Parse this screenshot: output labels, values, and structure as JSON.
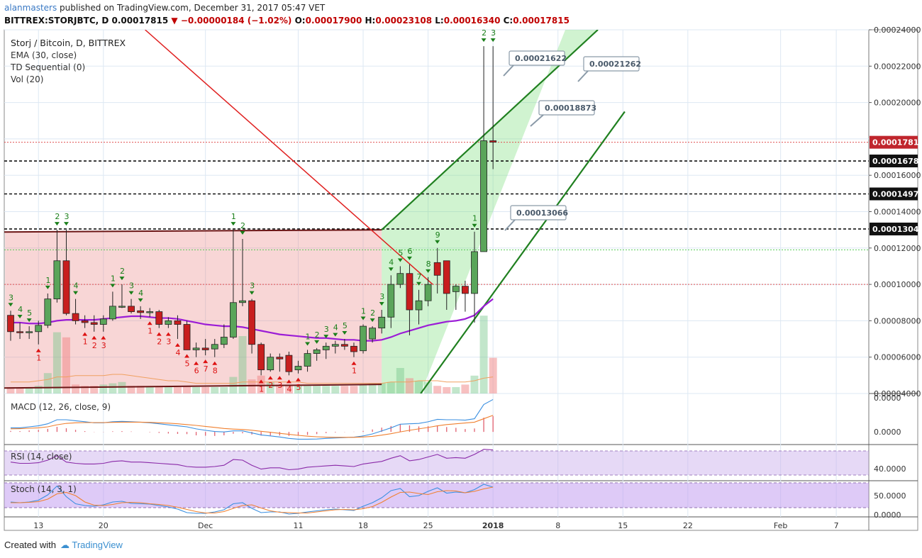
{
  "header": {
    "username": "alanmasters",
    "published_text": " published on TradingView.com, December 31, 2017 05:47 VET",
    "symbol": "BITTREX:STORJBTC, D",
    "last": "0.00017815",
    "change": "▼ −0.00000184 (−1.02%)",
    "o_label": "O:",
    "o": "0.00017900",
    "h_label": "H:",
    "h": "0.00023108",
    "l_label": "L:",
    "l": "0.00016340",
    "c_label": "C:",
    "c": "0.00017815"
  },
  "footer": {
    "created_with": "Created with",
    "brand": "TradingView"
  },
  "chart_data": {
    "type": "candlestick",
    "title": "Storj / Bitcoin, D, BITTREX",
    "indicators_legend": [
      "EMA (30, close)",
      "TD Sequential (0)",
      "Vol (20)"
    ],
    "y_ticks": [
      "0.00024000",
      "0.00022000",
      "0.00020000",
      "0.00016000",
      "0.00014000",
      "0.00012000",
      "0.00010000",
      "0.00008000",
      "0.00006000",
      "0.00004000"
    ],
    "ylim": [
      4e-05,
      0.00024
    ],
    "x_ticks": [
      {
        "label": "13",
        "idx": 3
      },
      {
        "label": "20",
        "idx": 10
      },
      {
        "label": "Dec",
        "idx": 21
      },
      {
        "label": "11",
        "idx": 31
      },
      {
        "label": "18",
        "idx": 38
      },
      {
        "label": "25",
        "idx": 45
      },
      {
        "label": "2018",
        "idx": 52
      },
      {
        "label": "8",
        "idx": 59
      },
      {
        "label": "15",
        "idx": 66
      },
      {
        "label": "22",
        "idx": 73
      },
      {
        "label": "Feb",
        "idx": 83
      },
      {
        "label": "7",
        "idx": 89
      }
    ],
    "candles": [
      [
        8.3e-05,
        8.55e-05,
        6.9e-05,
        7.4e-05
      ],
      [
        7.4e-05,
        7.9e-05,
        7e-05,
        7.35e-05
      ],
      [
        7.35e-05,
        7.7e-05,
        7e-05,
        7.4e-05
      ],
      [
        7.4e-05,
        8e-05,
        6.7e-05,
        7.75e-05
      ],
      [
        7.75e-05,
        9.5e-05,
        7.6e-05,
        9.2e-05
      ],
      [
        9.2e-05,
        0.00013,
        9e-05,
        0.000113
      ],
      [
        0.000113,
        0.00013,
        8.3e-05,
        8.4e-05
      ],
      [
        8.4e-05,
        9.2e-05,
        7.8e-05,
        8e-05
      ],
      [
        8e-05,
        8.3e-05,
        7.6e-05,
        7.9e-05
      ],
      [
        7.9e-05,
        8.3e-05,
        7.4e-05,
        7.8e-05
      ],
      [
        7.8e-05,
        8.3e-05,
        7.4e-05,
        8.1e-05
      ],
      [
        8.1e-05,
        9.6e-05,
        8e-05,
        8.8e-05
      ],
      [
        8.8e-05,
        0.0001,
        8.7e-05,
        8.8e-05
      ],
      [
        8.8e-05,
        9.2e-05,
        8.4e-05,
        8.5e-05
      ],
      [
        8.55e-05,
        8.8e-05,
        8.1e-05,
        8.45e-05
      ],
      [
        8.45e-05,
        8.7e-05,
        8.2e-05,
        8.5e-05
      ],
      [
        8.5e-05,
        8.6e-05,
        7.6e-05,
        7.8e-05
      ],
      [
        7.8e-05,
        8.2e-05,
        7.6e-05,
        8e-05
      ],
      [
        8e-05,
        8.3e-05,
        7e-05,
        7.8e-05
      ],
      [
        7.8e-05,
        8e-05,
        6.4e-05,
        6.4e-05
      ],
      [
        6.4e-05,
        6.8e-05,
        6e-05,
        6.5e-05
      ],
      [
        6.5e-05,
        7e-05,
        6.1e-05,
        6.4e-05
      ],
      [
        6.45e-05,
        7e-05,
        6e-05,
        6.7e-05
      ],
      [
        6.7e-05,
        7.8e-05,
        6.5e-05,
        7.1e-05
      ],
      [
        7.1e-05,
        0.00013,
        7e-05,
        9e-05
      ],
      [
        9e-05,
        0.000125,
        8.8e-05,
        9.1e-05
      ],
      [
        9.1e-05,
        9.2e-05,
        6.2e-05,
        6.7e-05
      ],
      [
        6.7e-05,
        6.8e-05,
        5e-05,
        5.3e-05
      ],
      [
        5.3e-05,
        6.2e-05,
        5.2e-05,
        6e-05
      ],
      [
        6e-05,
        6.2e-05,
        5.2e-05,
        5.9e-05
      ],
      [
        6.1e-05,
        6.3e-05,
        5e-05,
        5.2e-05
      ],
      [
        5.3e-05,
        5.8e-05,
        5.1e-05,
        5.5e-05
      ],
      [
        5.5e-05,
        6.4e-05,
        5.2e-05,
        6.2e-05
      ],
      [
        6.2e-05,
        6.5e-05,
        5.8e-05,
        6.4e-05
      ],
      [
        6.4e-05,
        6.8e-05,
        5.9e-05,
        6.6e-05
      ],
      [
        6.6e-05,
        6.9e-05,
        6.2e-05,
        6.7e-05
      ],
      [
        6.7e-05,
        7e-05,
        6.4e-05,
        6.6e-05
      ],
      [
        6.6e-05,
        6.8e-05,
        6e-05,
        6.3e-05
      ],
      [
        6.35e-05,
        7.8e-05,
        6.2e-05,
        7.7e-05
      ],
      [
        7e-05,
        7.7e-05,
        6.8e-05,
        7.6e-05
      ],
      [
        7.6e-05,
        8.6e-05,
        7.3e-05,
        8.2e-05
      ],
      [
        8.2e-05,
        0.000105,
        7.6e-05,
        0.0001
      ],
      [
        0.0001,
        0.00011,
        9.8e-05,
        0.000106
      ],
      [
        0.000106,
        0.000111,
        7.2e-05,
        8.6e-05
      ],
      [
        8.6e-05,
        9.7e-05,
        7.8e-05,
        9.1e-05
      ],
      [
        9.1e-05,
        0.000104,
        8.8e-05,
        0.0001
      ],
      [
        0.000112,
        0.00012,
        9.5e-05,
        0.000105
      ],
      [
        0.000113,
        0.000113,
        8.6e-05,
        9.5e-05
      ],
      [
        9.6e-05,
        0.0001,
        8.6e-05,
        9.9e-05
      ],
      [
        9.9e-05,
        0.000102,
        8.5e-05,
        9.5e-05
      ],
      [
        9.5e-05,
        0.000129,
        7.9e-05,
        0.000118
      ],
      [
        0.000118,
        0.000231,
        0.000118,
        0.000179
      ],
      [
        0.000179,
        0.000231,
        0.0001634,
        0.0001782
      ]
    ],
    "ema_30": [
      7.9e-05,
      7.9e-05,
      7.85e-05,
      7.85e-05,
      7.9e-05,
      8e-05,
      8.05e-05,
      8.05e-05,
      8.05e-05,
      8.05e-05,
      8.1e-05,
      8.15e-05,
      8.2e-05,
      8.25e-05,
      8.25e-05,
      8.2e-05,
      8.15e-05,
      8.15e-05,
      8.1e-05,
      8e-05,
      7.9e-05,
      7.8e-05,
      7.75e-05,
      7.7e-05,
      7.7e-05,
      7.65e-05,
      7.55e-05,
      7.45e-05,
      7.35e-05,
      7.25e-05,
      7.2e-05,
      7.15e-05,
      7.1e-05,
      7.05e-05,
      7.05e-05,
      7e-05,
      6.95e-05,
      6.95e-05,
      6.9e-05,
      6.9e-05,
      6.95e-05,
      7.1e-05,
      7.3e-05,
      7.45e-05,
      7.6e-05,
      7.75e-05,
      7.85e-05,
      7.95e-05,
      8e-05,
      8.1e-05,
      8.3e-05,
      8.8e-05,
      9.2e-05
    ],
    "volume": [
      0.05,
      0.04,
      0.05,
      0.06,
      0.16,
      0.48,
      0.44,
      0.07,
      0.06,
      0.06,
      0.07,
      0.08,
      0.09,
      0.06,
      0.06,
      0.05,
      0.05,
      0.05,
      0.05,
      0.06,
      0.05,
      0.05,
      0.05,
      0.05,
      0.13,
      0.45,
      0.11,
      0.14,
      0.09,
      0.07,
      0.06,
      0.06,
      0.06,
      0.06,
      0.06,
      0.06,
      0.06,
      0.06,
      0.07,
      0.08,
      0.08,
      0.09,
      0.2,
      0.12,
      0.1,
      0.09,
      0.06,
      0.05,
      0.05,
      0.07,
      0.14,
      0.61,
      0.28
    ],
    "volume_ma": [
      0.09,
      0.09,
      0.09,
      0.1,
      0.11,
      0.13,
      0.13,
      0.14,
      0.14,
      0.14,
      0.14,
      0.15,
      0.15,
      0.14,
      0.13,
      0.12,
      0.11,
      0.1,
      0.1,
      0.09,
      0.08,
      0.08,
      0.08,
      0.08,
      0.08,
      0.09,
      0.09,
      0.09,
      0.09,
      0.09,
      0.09,
      0.09,
      0.08,
      0.08,
      0.08,
      0.08,
      0.08,
      0.08,
      0.08,
      0.08,
      0.08,
      0.09,
      0.09,
      0.09,
      0.1,
      0.1,
      0.1,
      0.09,
      0.09,
      0.09,
      0.1,
      0.12,
      0.13
    ],
    "td_sequential": [
      {
        "idx": 0,
        "label": "3",
        "pos": "above",
        "color": "green"
      },
      {
        "idx": 1,
        "label": "4",
        "pos": "above",
        "color": "green"
      },
      {
        "idx": 2,
        "label": "5",
        "pos": "above",
        "color": "green"
      },
      {
        "idx": 3,
        "label": "1",
        "pos": "below",
        "color": "red"
      },
      {
        "idx": 4,
        "label": "1",
        "pos": "above",
        "color": "green"
      },
      {
        "idx": 5,
        "label": "2",
        "pos": "above",
        "color": "green"
      },
      {
        "idx": 6,
        "label": "3",
        "pos": "above",
        "color": "green"
      },
      {
        "idx": 7,
        "label": "4",
        "pos": "above",
        "color": "green"
      },
      {
        "idx": 8,
        "label": "1",
        "pos": "below",
        "color": "red"
      },
      {
        "idx": 9,
        "label": "2",
        "pos": "below",
        "color": "red"
      },
      {
        "idx": 10,
        "label": "3",
        "pos": "below",
        "color": "red"
      },
      {
        "idx": 11,
        "label": "1",
        "pos": "above",
        "color": "green"
      },
      {
        "idx": 12,
        "label": "2",
        "pos": "above",
        "color": "green"
      },
      {
        "idx": 13,
        "label": "3",
        "pos": "above",
        "color": "green"
      },
      {
        "idx": 14,
        "label": "4",
        "pos": "above",
        "color": "green"
      },
      {
        "idx": 15,
        "label": "1",
        "pos": "below",
        "color": "red"
      },
      {
        "idx": 16,
        "label": "2",
        "pos": "below",
        "color": "red"
      },
      {
        "idx": 17,
        "label": "3",
        "pos": "below",
        "color": "red"
      },
      {
        "idx": 18,
        "label": "4",
        "pos": "below",
        "color": "red"
      },
      {
        "idx": 19,
        "label": "5",
        "pos": "below",
        "color": "red"
      },
      {
        "idx": 20,
        "label": "6",
        "pos": "below",
        "color": "red"
      },
      {
        "idx": 21,
        "label": "7",
        "pos": "below",
        "color": "red"
      },
      {
        "idx": 22,
        "label": "8",
        "pos": "below",
        "color": "red"
      },
      {
        "idx": 24,
        "label": "1",
        "pos": "above",
        "color": "green"
      },
      {
        "idx": 25,
        "label": "2",
        "pos": "above",
        "color": "green"
      },
      {
        "idx": 26,
        "label": "3",
        "pos": "above",
        "color": "green"
      },
      {
        "idx": 27,
        "label": "1",
        "pos": "below",
        "color": "red"
      },
      {
        "idx": 28,
        "label": "2",
        "pos": "below",
        "color": "red"
      },
      {
        "idx": 29,
        "label": "3",
        "pos": "below",
        "color": "red"
      },
      {
        "idx": 30,
        "label": "4",
        "pos": "below",
        "color": "red"
      },
      {
        "idx": 31,
        "label": "5",
        "pos": "below",
        "color": "red"
      },
      {
        "idx": 32,
        "label": "1",
        "pos": "above",
        "color": "green"
      },
      {
        "idx": 33,
        "label": "2",
        "pos": "above",
        "color": "green"
      },
      {
        "idx": 34,
        "label": "3",
        "pos": "above",
        "color": "green"
      },
      {
        "idx": 35,
        "label": "4",
        "pos": "above",
        "color": "green"
      },
      {
        "idx": 36,
        "label": "5",
        "pos": "above",
        "color": "green"
      },
      {
        "idx": 37,
        "label": "1",
        "pos": "below",
        "color": "red"
      },
      {
        "idx": 38,
        "label": "1",
        "pos": "above",
        "color": "green"
      },
      {
        "idx": 39,
        "label": "2",
        "pos": "above",
        "color": "green"
      },
      {
        "idx": 40,
        "label": "3",
        "pos": "above",
        "color": "green"
      },
      {
        "idx": 41,
        "label": "4",
        "pos": "above",
        "color": "green"
      },
      {
        "idx": 42,
        "label": "5",
        "pos": "above",
        "color": "green"
      },
      {
        "idx": 43,
        "label": "6",
        "pos": "above",
        "color": "green"
      },
      {
        "idx": 44,
        "label": "7",
        "pos": "above",
        "color": "green"
      },
      {
        "idx": 45,
        "label": "8",
        "pos": "above",
        "color": "green"
      },
      {
        "idx": 46,
        "label": "9",
        "pos": "above",
        "color": "green"
      },
      {
        "idx": 50,
        "label": "1",
        "pos": "above",
        "color": "green"
      },
      {
        "idx": 51,
        "label": "2",
        "pos": "above",
        "color": "green"
      },
      {
        "idx": 52,
        "label": "3",
        "pos": "above",
        "color": "green"
      }
    ],
    "hlines": [
      {
        "value": 0.00017815,
        "style": "dotted",
        "color": "#e05050",
        "label": "0.00017815",
        "label_bg": "#c0262d"
      },
      {
        "value": 0.00016787,
        "style": "dashed",
        "color": "#111111",
        "label": "0.00016787",
        "label_bg": "#111111"
      },
      {
        "value": 0.00014975,
        "style": "dashed",
        "color": "#111111",
        "label": "0.00014975",
        "label_bg": "#111111"
      },
      {
        "value": 0.00013046,
        "style": "dashed",
        "color": "#111111",
        "label": "0.00013046",
        "label_bg": "#111111"
      },
      {
        "value": 0.000119,
        "style": "dotted",
        "color": "#55cc55",
        "label": "",
        "label_bg": ""
      },
      {
        "value": 0.0001,
        "style": "dotted",
        "color": "#e05050",
        "label": "",
        "label_bg": ""
      }
    ],
    "callouts": [
      "0.00021622",
      "0.00021262",
      "0.00018873",
      "0.00013066"
    ],
    "pane_titles": {
      "macd": "MACD (12, 26, close, 9)",
      "rsi": "RSI (14, close)",
      "stoch": "Stoch (14, 3, 1)"
    },
    "macd_ticks": [
      "0.0000",
      "0.0000"
    ],
    "rsi_ticks": [
      "40.0000"
    ],
    "stoch_ticks": [
      "50.0000",
      "0.0000"
    ],
    "macd": [
      0.2,
      0.2,
      0.25,
      0.3,
      0.4,
      0.6,
      0.6,
      0.55,
      0.5,
      0.45,
      0.45,
      0.5,
      0.52,
      0.5,
      0.48,
      0.45,
      0.4,
      0.35,
      0.3,
      0.25,
      0.15,
      0.08,
      0.02,
      0.0,
      0.05,
      0.05,
      -0.05,
      -0.15,
      -0.2,
      -0.25,
      -0.32,
      -0.36,
      -0.36,
      -0.35,
      -0.32,
      -0.3,
      -0.28,
      -0.26,
      -0.2,
      -0.1,
      0.05,
      0.2,
      0.38,
      0.4,
      0.42,
      0.5,
      0.62,
      0.6,
      0.6,
      0.58,
      0.65,
      1.35,
      1.6
    ],
    "macd_signal": [
      0.15,
      0.16,
      0.18,
      0.2,
      0.25,
      0.35,
      0.42,
      0.45,
      0.46,
      0.46,
      0.46,
      0.47,
      0.48,
      0.48,
      0.48,
      0.47,
      0.45,
      0.43,
      0.4,
      0.36,
      0.32,
      0.27,
      0.22,
      0.17,
      0.14,
      0.12,
      0.08,
      0.03,
      -0.02,
      -0.07,
      -0.12,
      -0.17,
      -0.21,
      -0.24,
      -0.26,
      -0.27,
      -0.27,
      -0.27,
      -0.25,
      -0.22,
      -0.16,
      -0.09,
      0.0,
      0.08,
      0.15,
      0.22,
      0.3,
      0.36,
      0.4,
      0.44,
      0.48,
      0.65,
      0.82
    ],
    "rsi": [
      52,
      50,
      50,
      51,
      55,
      62,
      52,
      50,
      49,
      49,
      50,
      53,
      54,
      52,
      52,
      51,
      50,
      49,
      48,
      45,
      44,
      44,
      45,
      47,
      56,
      55,
      47,
      41,
      43,
      43,
      40,
      41,
      44,
      45,
      46,
      47,
      46,
      45,
      49,
      51,
      53,
      58,
      62,
      54,
      56,
      60,
      64,
      58,
      59,
      58,
      64,
      72,
      71
    ],
    "stoch": [
      40,
      38,
      40,
      45,
      60,
      85,
      55,
      35,
      30,
      28,
      32,
      40,
      42,
      36,
      35,
      34,
      30,
      26,
      20,
      10,
      8,
      8,
      12,
      18,
      35,
      38,
      22,
      10,
      12,
      12,
      6,
      8,
      12,
      15,
      18,
      20,
      18,
      16,
      28,
      38,
      52,
      72,
      78,
      55,
      58,
      70,
      80,
      65,
      68,
      66,
      75,
      90,
      82
    ],
    "stoch_signal": [
      38,
      38,
      39,
      41,
      48,
      63,
      67,
      58,
      40,
      31,
      30,
      33,
      38,
      39,
      38,
      35,
      33,
      30,
      25,
      19,
      13,
      9,
      9,
      13,
      22,
      30,
      32,
      23,
      15,
      11,
      10,
      9,
      9,
      12,
      15,
      18,
      19,
      18,
      21,
      27,
      39,
      54,
      67,
      68,
      64,
      61,
      69,
      72,
      71,
      66,
      70,
      77,
      82
    ]
  }
}
